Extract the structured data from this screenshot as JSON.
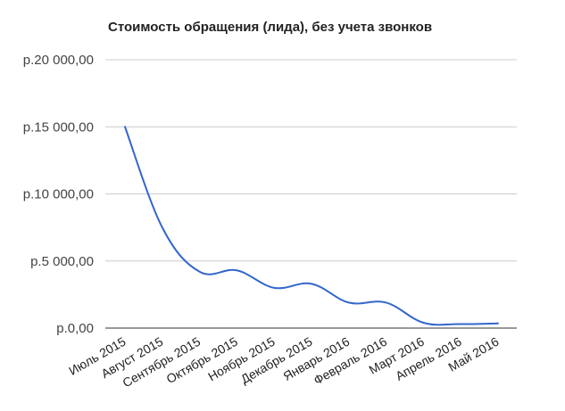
{
  "chart_data": {
    "type": "line",
    "title": "Стоимость обращения (лида), без учета звонков",
    "xlabel": "",
    "ylabel": "",
    "categories": [
      "Июль 2015",
      "Август 2015",
      "Сентябрь 2015",
      "Октябрь 2015",
      "Ноябрь 2015",
      "Декабрь 2015",
      "Январь 2016",
      "Февраль 2016",
      "Март 2016",
      "Апрель 2016",
      "Май 2016"
    ],
    "series": [
      {
        "values": [
          15000,
          7500,
          4200,
          4300,
          3000,
          3300,
          1900,
          1900,
          400,
          300,
          350
        ],
        "color": "#3366cc"
      }
    ],
    "ylim": [
      0,
      20000
    ],
    "yticks": [
      0,
      5000,
      10000,
      15000,
      20000
    ],
    "ytick_labels": [
      "р.0,00",
      "р.5 000,00",
      "р.10 000,00",
      "р.15 000,00",
      "р.20 000,00"
    ],
    "grid": true,
    "legend": "none",
    "colors": {
      "grid": "#cccccc",
      "baseline": "#333333",
      "axis_text": "#444444"
    }
  }
}
